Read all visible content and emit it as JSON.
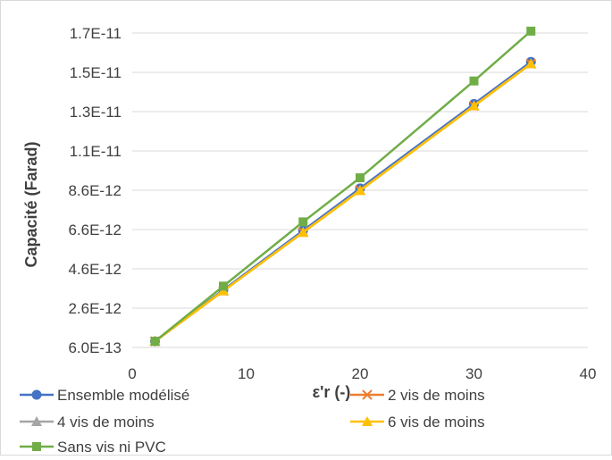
{
  "chart_data": {
    "type": "line",
    "title": "",
    "xlabel": "ε'r (-)",
    "ylabel": "Capacité (Farad)",
    "xlim": [
      0,
      40
    ],
    "ylim": [
      6e-13,
      1.7e-11
    ],
    "x_ticks": [
      "0",
      "10",
      "20",
      "30",
      "40"
    ],
    "y_ticks": [
      "6.0E-13",
      "2.6E-12",
      "4.6E-12",
      "6.6E-12",
      "8.6E-12",
      "1.1E-11",
      "1.3E-11",
      "1.5E-11",
      "1.7E-11"
    ],
    "grid": "horizontal",
    "legend_position": "bottom",
    "x": [
      2,
      8,
      15,
      20,
      30,
      35
    ],
    "series": [
      {
        "name": "Ensemble modélisé",
        "color": "#4472C4",
        "marker": "circle",
        "values": [
          9.2e-13,
          3.6e-12,
          6.7e-12,
          8.9e-12,
          1.33e-11,
          1.55e-11
        ]
      },
      {
        "name": "2 vis de moins",
        "color": "#ED7D31",
        "marker": "x",
        "values": [
          9.2e-13,
          3.55e-12,
          6.62e-12,
          8.8e-12,
          1.32e-11,
          1.54e-11
        ]
      },
      {
        "name": "4 vis de moins",
        "color": "#A5A5A5",
        "marker": "triangle",
        "values": [
          9.2e-13,
          3.55e-12,
          6.62e-12,
          8.8e-12,
          1.32e-11,
          1.54e-11
        ]
      },
      {
        "name": "6 vis de moins",
        "color": "#FFC000",
        "marker": "triangle",
        "values": [
          9.2e-13,
          3.55e-12,
          6.6e-12,
          8.78e-12,
          1.32e-11,
          1.54e-11
        ]
      },
      {
        "name": "Sans vis ni PVC",
        "color": "#70AD47",
        "marker": "square",
        "values": [
          9.2e-13,
          3.8e-12,
          7.15e-12,
          9.45e-12,
          1.45e-11,
          1.71e-11
        ]
      }
    ]
  }
}
